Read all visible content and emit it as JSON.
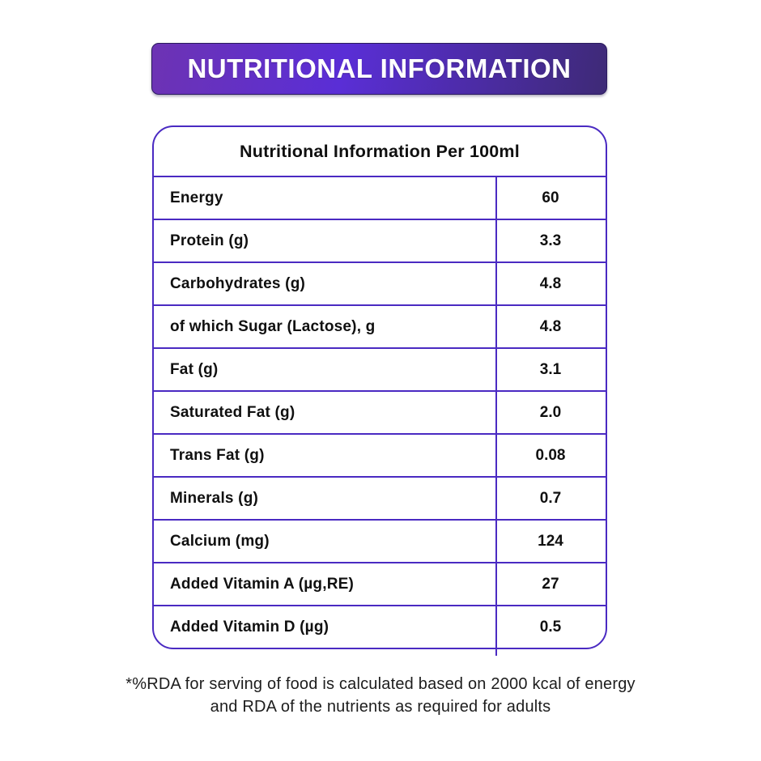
{
  "banner": {
    "title": "NUTRITIONAL INFORMATION"
  },
  "table": {
    "header": "Nutritional Information Per 100ml",
    "rows": [
      {
        "label": "Energy",
        "value": "60"
      },
      {
        "label": "Protein (g)",
        "value": "3.3"
      },
      {
        "label": "Carbohydrates (g)",
        "value": "4.8"
      },
      {
        "label": "of which Sugar (Lactose), g",
        "value": "4.8"
      },
      {
        "label": "Fat (g)",
        "value": "3.1"
      },
      {
        "label": "Saturated Fat (g)",
        "value": "2.0"
      },
      {
        "label": "Trans Fat (g)",
        "value": "0.08"
      },
      {
        "label": "Minerals (g)",
        "value": "0.7"
      },
      {
        "label": "Calcium (mg)",
        "value": "124"
      },
      {
        "label": "Added Vitamin A (µg,RE)",
        "value": "27"
      },
      {
        "label": "Added Vitamin D (µg)",
        "value": "0.5"
      }
    ]
  },
  "footnote": {
    "line1": "*%RDA for serving of food is calculated based on 2000 kcal of energy",
    "line2": "and RDA of the nutrients as required for adults"
  },
  "colors": {
    "banner_gradient_left": "#6d33b3",
    "banner_gradient_mid": "#5a2ed6",
    "banner_gradient_right": "#3e2a76",
    "table_border": "#4a2ac2",
    "text": "#101010"
  }
}
